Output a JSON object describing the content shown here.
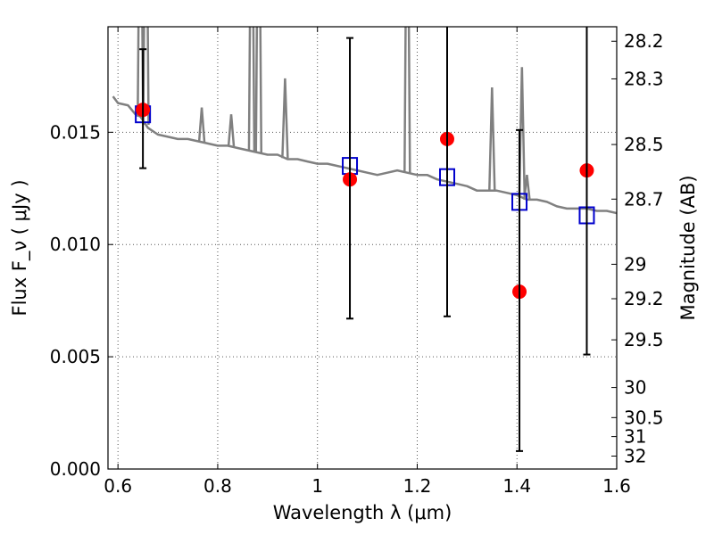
{
  "chart_data": {
    "type": "scatter",
    "x_axis": {
      "label": "Wavelength  λ (μm)",
      "range": [
        0.58,
        1.6
      ],
      "ticks": [
        0.6,
        0.8,
        1.0,
        1.2,
        1.4,
        1.6
      ],
      "tick_labels": [
        "0.6",
        "0.8",
        "1",
        "1.2",
        "1.4",
        "1.6"
      ]
    },
    "y_axis_left": {
      "label": "Flux  F_ν  ( μJy )",
      "range": [
        0.0,
        0.0197
      ],
      "ticks": [
        0.0,
        0.005,
        0.01,
        0.015
      ],
      "tick_labels": [
        "0.000",
        "0.005",
        "0.010",
        "0.015"
      ]
    },
    "y_axis_right": {
      "label": "Magnitude (AB)",
      "tick_values": [
        28.2,
        28.3,
        28.5,
        28.7,
        29,
        29.2,
        29.5,
        30,
        30.5,
        31,
        32
      ],
      "tick_labels": [
        "28.2",
        "28.3",
        "28.5",
        "28.7",
        "29",
        "29.2",
        "29.5",
        "30",
        "30.5",
        "31",
        "32"
      ]
    },
    "grid": true,
    "colors": {
      "model": "#808080",
      "observed": "#ff0000",
      "synthetic": "#0000cc",
      "errorbar": "#000000"
    },
    "model_spectrum": {
      "x": [
        0.59,
        0.6,
        0.62,
        0.635,
        0.645,
        0.66,
        0.68,
        0.7,
        0.72,
        0.74,
        0.76,
        0.78,
        0.8,
        0.82,
        0.84,
        0.86,
        0.88,
        0.9,
        0.92,
        0.94,
        0.96,
        0.98,
        1.0,
        1.02,
        1.04,
        1.06,
        1.08,
        1.1,
        1.12,
        1.14,
        1.16,
        1.18,
        1.2,
        1.22,
        1.24,
        1.26,
        1.28,
        1.3,
        1.32,
        1.34,
        1.36,
        1.38,
        1.4,
        1.42,
        1.44,
        1.46,
        1.48,
        1.5,
        1.52,
        1.54,
        1.56,
        1.58,
        1.6
      ],
      "y": [
        0.0166,
        0.0163,
        0.0162,
        0.0158,
        0.0157,
        0.0152,
        0.0149,
        0.0148,
        0.0147,
        0.0147,
        0.0146,
        0.0145,
        0.0144,
        0.0144,
        0.0143,
        0.0142,
        0.0141,
        0.014,
        0.014,
        0.0138,
        0.0138,
        0.0137,
        0.0136,
        0.0136,
        0.0135,
        0.0134,
        0.0133,
        0.0132,
        0.0131,
        0.0132,
        0.0133,
        0.0132,
        0.0131,
        0.0131,
        0.0129,
        0.0128,
        0.0127,
        0.0126,
        0.0124,
        0.0124,
        0.0124,
        0.0123,
        0.0122,
        0.012,
        0.012,
        0.0119,
        0.0117,
        0.0116,
        0.0116,
        0.0116,
        0.0115,
        0.0115,
        0.0114
      ]
    },
    "observed_points": [
      {
        "x": 0.65,
        "y": 0.016
      },
      {
        "x": 1.065,
        "y": 0.0129
      },
      {
        "x": 1.26,
        "y": 0.0147
      },
      {
        "x": 1.405,
        "y": 0.0079
      },
      {
        "x": 1.54,
        "y": 0.0133
      }
    ],
    "synthetic_points": [
      {
        "x": 0.65,
        "y": 0.0158
      },
      {
        "x": 1.065,
        "y": 0.0135
      },
      {
        "x": 1.26,
        "y": 0.013
      },
      {
        "x": 1.405,
        "y": 0.0119
      },
      {
        "x": 1.54,
        "y": 0.0113
      }
    ],
    "error_bars": [
      {
        "x": 0.65,
        "low": 0.0134,
        "high": 0.0187
      },
      {
        "x": 1.065,
        "low": 0.0067,
        "high": 0.0192
      },
      {
        "x": 1.26,
        "low": 0.0068,
        "high": 0.0197
      },
      {
        "x": 1.405,
        "low": 0.0008,
        "high": 0.0151
      },
      {
        "x": 1.54,
        "low": 0.0051,
        "high": 0.0197
      }
    ]
  }
}
